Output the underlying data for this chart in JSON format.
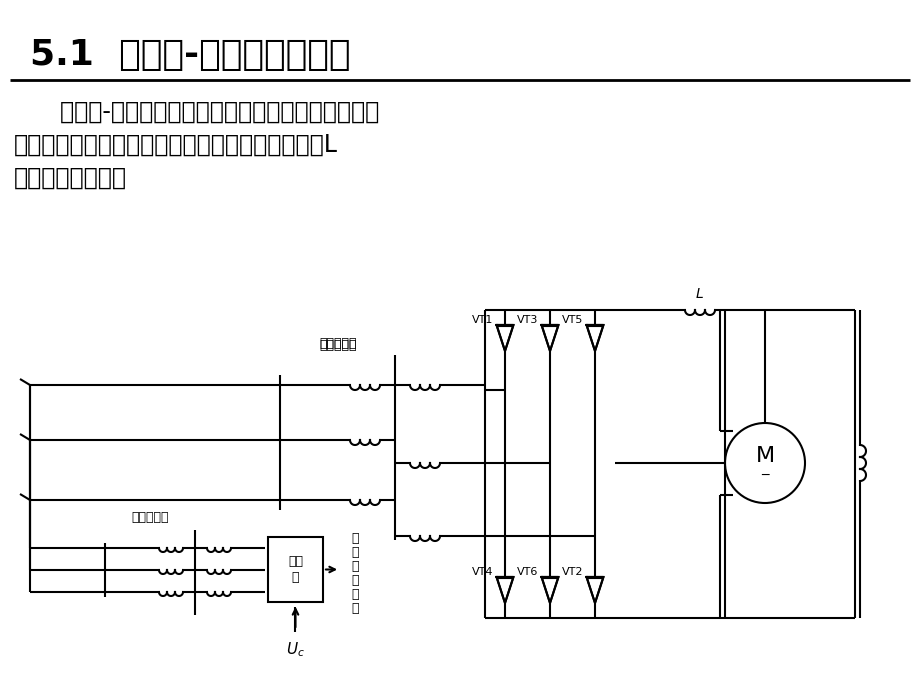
{
  "title": "5.1  晶闸管-直流电动机系统",
  "body_line1": "    晶闸管-直流电动机系统是直流调速最基本的组成，",
  "body_line2": "它主要由整流变压器、晶闸管整流器、平波电抗器L",
  "body_line3": "和直流电动机组成",
  "label_zhengliu": "整流变压器",
  "label_tongbu": "同步变压器",
  "label_chufa": "触发\n器",
  "label_liulu": "六\n路\n触\n发\n脉\n冲",
  "label_uc": "$U_c$",
  "label_L": "L",
  "label_M": "M",
  "vt_top": [
    "VT1",
    "VT3",
    "VT5"
  ],
  "vt_bot": [
    "VT4",
    "VT6",
    "VT2"
  ],
  "bg_color": "#ffffff",
  "lc": "#000000",
  "lw": 1.5,
  "title_fs": 26,
  "body_fs": 17,
  "small_fs": 9
}
